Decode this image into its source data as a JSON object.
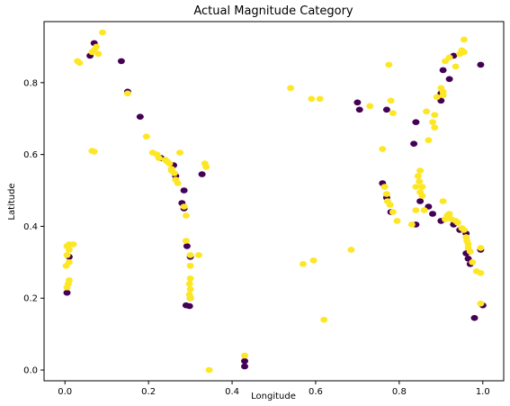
{
  "chart_data": {
    "type": "scatter",
    "title": "Actual Magnitude Category",
    "xlabel": "Longitude",
    "ylabel": "Latitude",
    "xlim": [
      -0.05,
      1.05
    ],
    "ylim": [
      -0.03,
      0.97
    ],
    "xticks": [
      0.0,
      0.2,
      0.4,
      0.6,
      0.8,
      1.0
    ],
    "xtick_labels": [
      "0.0",
      "0.2",
      "0.4",
      "0.6",
      "0.8",
      "1.0"
    ],
    "yticks": [
      0.0,
      0.2,
      0.4,
      0.6,
      0.8
    ],
    "ytick_labels": [
      "0.0",
      "0.2",
      "0.4",
      "0.6",
      "0.8"
    ],
    "grid": false,
    "colors": {
      "category_0": "#440154",
      "category_1": "#fde725"
    },
    "series": [
      {
        "values": [
          [
            0.07,
            0.91
          ],
          [
            0.06,
            0.875
          ],
          [
            0.135,
            0.86
          ],
          [
            0.15,
            0.775
          ],
          [
            0.18,
            0.705
          ],
          [
            0.23,
            0.59
          ],
          [
            0.26,
            0.57
          ],
          [
            0.265,
            0.54
          ],
          [
            0.28,
            0.465
          ],
          [
            0.285,
            0.45
          ],
          [
            0.285,
            0.5
          ],
          [
            0.292,
            0.345
          ],
          [
            0.3,
            0.315
          ],
          [
            0.3,
            0.2
          ],
          [
            0.29,
            0.18
          ],
          [
            0.298,
            0.178
          ],
          [
            0.328,
            0.545
          ],
          [
            0.01,
            0.315
          ],
          [
            0.005,
            0.215
          ],
          [
            0.43,
            0.01
          ],
          [
            0.43,
            0.025
          ],
          [
            0.7,
            0.745
          ],
          [
            0.705,
            0.725
          ],
          [
            0.77,
            0.725
          ],
          [
            0.835,
            0.63
          ],
          [
            0.84,
            0.69
          ],
          [
            0.87,
            0.455
          ],
          [
            0.88,
            0.435
          ],
          [
            0.93,
            0.875
          ],
          [
            0.92,
            0.81
          ],
          [
            0.9,
            0.77
          ],
          [
            0.9,
            0.75
          ],
          [
            0.905,
            0.835
          ],
          [
            0.995,
            0.85
          ],
          [
            0.76,
            0.52
          ],
          [
            0.77,
            0.48
          ],
          [
            0.78,
            0.44
          ],
          [
            0.84,
            0.405
          ],
          [
            0.85,
            0.47
          ],
          [
            0.9,
            0.415
          ],
          [
            0.93,
            0.405
          ],
          [
            0.945,
            0.39
          ],
          [
            0.96,
            0.38
          ],
          [
            0.96,
            0.325
          ],
          [
            0.965,
            0.31
          ],
          [
            0.97,
            0.295
          ],
          [
            0.98,
            0.145
          ],
          [
            0.995,
            0.335
          ],
          [
            1.0,
            0.18
          ]
        ]
      },
      {
        "values": [
          [
            0.09,
            0.94
          ],
          [
            0.075,
            0.9
          ],
          [
            0.07,
            0.89
          ],
          [
            0.08,
            0.88
          ],
          [
            0.065,
            0.885
          ],
          [
            0.03,
            0.86
          ],
          [
            0.035,
            0.855
          ],
          [
            0.15,
            0.77
          ],
          [
            0.065,
            0.61
          ],
          [
            0.07,
            0.608
          ],
          [
            0.195,
            0.65
          ],
          [
            0.21,
            0.605
          ],
          [
            0.22,
            0.6
          ],
          [
            0.225,
            0.59
          ],
          [
            0.24,
            0.585
          ],
          [
            0.245,
            0.58
          ],
          [
            0.25,
            0.575
          ],
          [
            0.255,
            0.56
          ],
          [
            0.255,
            0.555
          ],
          [
            0.262,
            0.548
          ],
          [
            0.275,
            0.605
          ],
          [
            0.27,
            0.52
          ],
          [
            0.265,
            0.53
          ],
          [
            0.285,
            0.455
          ],
          [
            0.29,
            0.43
          ],
          [
            0.29,
            0.36
          ],
          [
            0.3,
            0.32
          ],
          [
            0.32,
            0.32
          ],
          [
            0.3,
            0.29
          ],
          [
            0.3,
            0.255
          ],
          [
            0.298,
            0.24
          ],
          [
            0.3,
            0.225
          ],
          [
            0.298,
            0.21
          ],
          [
            0.3,
            0.2
          ],
          [
            0.335,
            0.575
          ],
          [
            0.338,
            0.565
          ],
          [
            0.345,
            0.0
          ],
          [
            0.43,
            0.04
          ],
          [
            0.005,
            0.345
          ],
          [
            0.01,
            0.35
          ],
          [
            0.02,
            0.35
          ],
          [
            0.01,
            0.335
          ],
          [
            0.005,
            0.32
          ],
          [
            0.01,
            0.3
          ],
          [
            0.003,
            0.29
          ],
          [
            0.01,
            0.25
          ],
          [
            0.008,
            0.24
          ],
          [
            0.005,
            0.23
          ],
          [
            0.54,
            0.785
          ],
          [
            0.59,
            0.755
          ],
          [
            0.61,
            0.755
          ],
          [
            0.57,
            0.295
          ],
          [
            0.595,
            0.305
          ],
          [
            0.62,
            0.14
          ],
          [
            0.685,
            0.335
          ],
          [
            0.73,
            0.735
          ],
          [
            0.775,
            0.85
          ],
          [
            0.78,
            0.75
          ],
          [
            0.785,
            0.715
          ],
          [
            0.76,
            0.615
          ],
          [
            0.765,
            0.51
          ],
          [
            0.77,
            0.49
          ],
          [
            0.772,
            0.47
          ],
          [
            0.778,
            0.46
          ],
          [
            0.785,
            0.44
          ],
          [
            0.795,
            0.415
          ],
          [
            0.83,
            0.405
          ],
          [
            0.84,
            0.445
          ],
          [
            0.84,
            0.51
          ],
          [
            0.845,
            0.54
          ],
          [
            0.85,
            0.555
          ],
          [
            0.848,
            0.525
          ],
          [
            0.855,
            0.51
          ],
          [
            0.85,
            0.495
          ],
          [
            0.855,
            0.485
          ],
          [
            0.86,
            0.445
          ],
          [
            0.865,
            0.72
          ],
          [
            0.88,
            0.69
          ],
          [
            0.885,
            0.675
          ],
          [
            0.885,
            0.71
          ],
          [
            0.89,
            0.76
          ],
          [
            0.9,
            0.785
          ],
          [
            0.905,
            0.775
          ],
          [
            0.905,
            0.765
          ],
          [
            0.91,
            0.86
          ],
          [
            0.92,
            0.87
          ],
          [
            0.935,
            0.845
          ],
          [
            0.945,
            0.88
          ],
          [
            0.95,
            0.89
          ],
          [
            0.955,
            0.885
          ],
          [
            0.955,
            0.92
          ],
          [
            0.87,
            0.64
          ],
          [
            0.905,
            0.47
          ],
          [
            0.91,
            0.42
          ],
          [
            0.915,
            0.43
          ],
          [
            0.92,
            0.435
          ],
          [
            0.925,
            0.42
          ],
          [
            0.935,
            0.415
          ],
          [
            0.94,
            0.41
          ],
          [
            0.95,
            0.395
          ],
          [
            0.955,
            0.39
          ],
          [
            0.96,
            0.37
          ],
          [
            0.962,
            0.36
          ],
          [
            0.965,
            0.35
          ],
          [
            0.965,
            0.34
          ],
          [
            0.97,
            0.33
          ],
          [
            0.975,
            0.3
          ],
          [
            0.985,
            0.275
          ],
          [
            0.995,
            0.27
          ],
          [
            0.995,
            0.185
          ],
          [
            0.995,
            0.34
          ]
        ]
      }
    ]
  }
}
